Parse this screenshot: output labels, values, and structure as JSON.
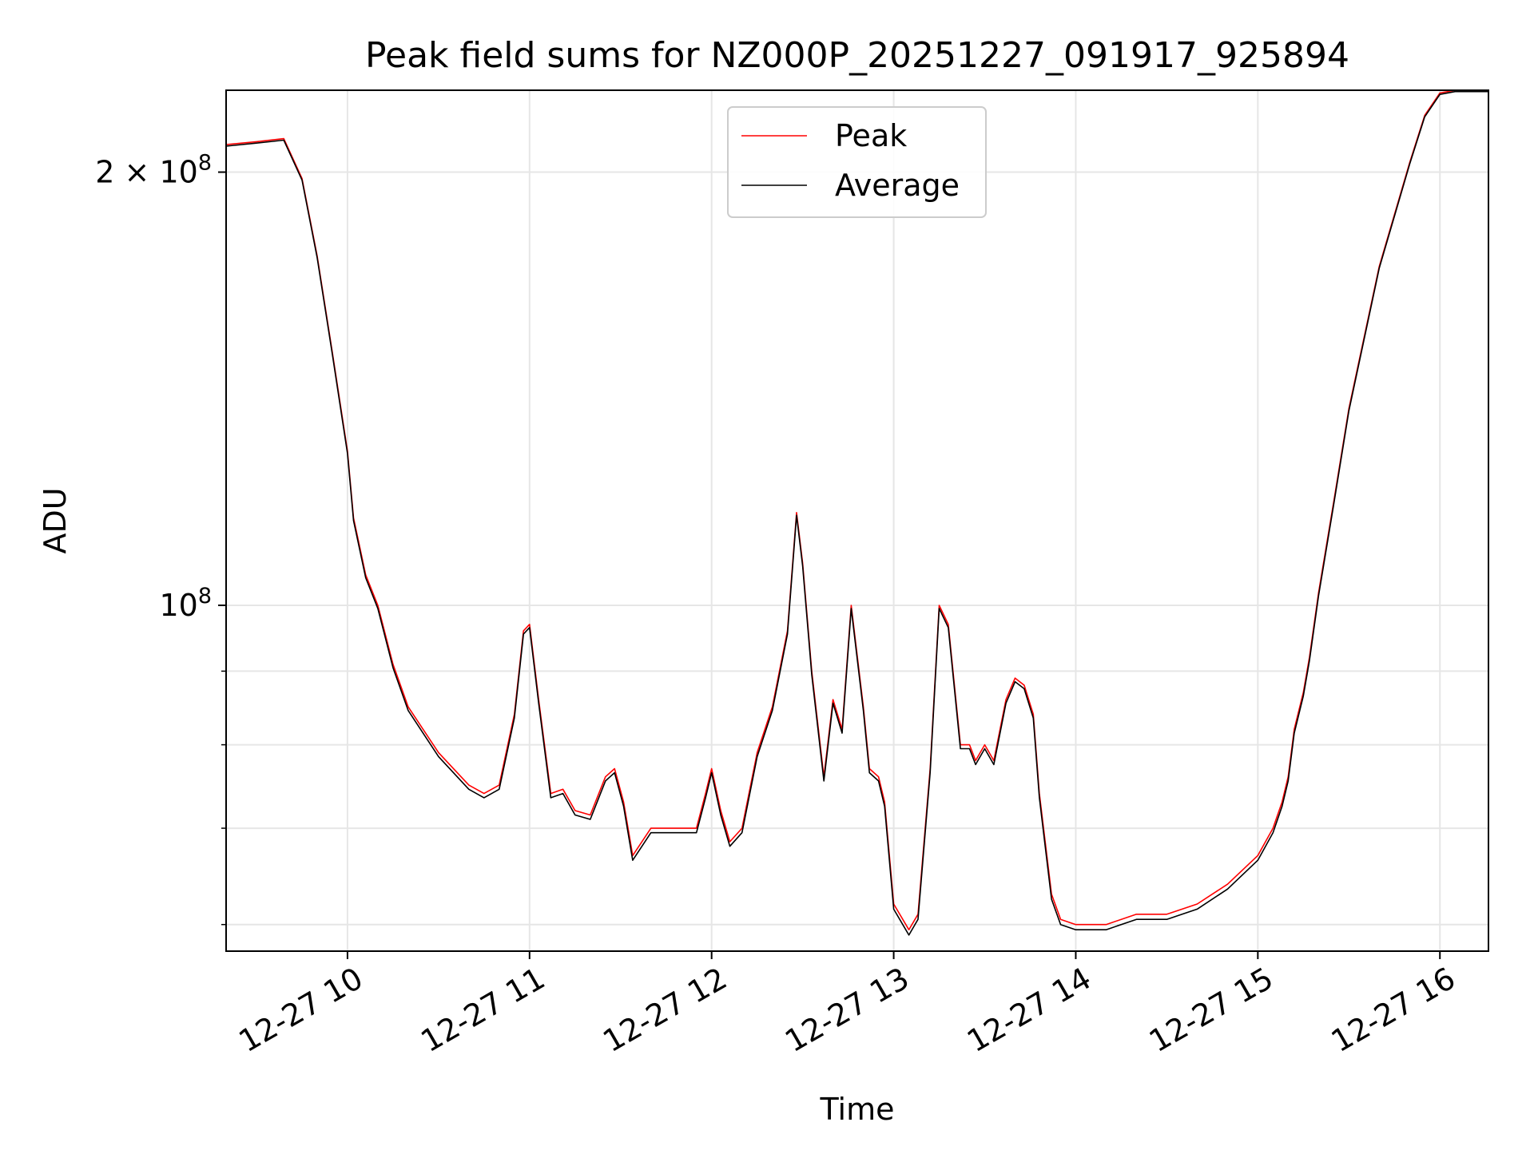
{
  "chart_data": {
    "type": "line",
    "title": "Peak field sums for NZ000P_20251227_091917_925894",
    "xlabel": "Time",
    "ylabel": "ADU",
    "y_scale": "log",
    "grid": true,
    "legend_position": "upper center",
    "x_ticks": [
      "12-27 10",
      "12-27 11",
      "12-27 12",
      "12-27 13",
      "12-27 14",
      "12-27 15",
      "12-27 16"
    ],
    "y_ticks": [
      {
        "value": 200000000,
        "label_base": "2 × 10",
        "label_exp": "8"
      },
      {
        "value": 100000000,
        "label_base": "10",
        "label_exp": "8"
      }
    ],
    "y_minor_ticks": [
      60000000,
      70000000,
      80000000,
      90000000
    ],
    "xlim": [
      "2025-12-27 09:20",
      "2025-12-27 16:16"
    ],
    "ylim": [
      57500000,
      228000000
    ],
    "colors": {
      "Peak": "#ff0000",
      "Average": "#000000"
    },
    "x": [
      "09:20",
      "09:30",
      "09:39",
      "09:45",
      "09:50",
      "09:55",
      "10:00",
      "10:02",
      "10:06",
      "10:10",
      "10:15",
      "10:20",
      "10:30",
      "10:40",
      "10:45",
      "10:50",
      "10:55",
      "10:58",
      "11:00",
      "11:03",
      "11:07",
      "11:11",
      "11:15",
      "11:20",
      "11:25",
      "11:28",
      "11:31",
      "11:34",
      "11:40",
      "11:50",
      "11:55",
      "11:58",
      "12:00",
      "12:03",
      "12:06",
      "12:10",
      "12:15",
      "12:20",
      "12:25",
      "12:28",
      "12:30",
      "12:33",
      "12:37",
      "12:40",
      "12:43",
      "12:46",
      "12:50",
      "12:52",
      "12:55",
      "12:57",
      "13:00",
      "13:05",
      "13:08",
      "13:12",
      "13:15",
      "13:18",
      "13:22",
      "13:25",
      "13:27",
      "13:30",
      "13:33",
      "13:37",
      "13:40",
      "13:43",
      "13:46",
      "13:48",
      "13:52",
      "13:55",
      "14:00",
      "14:10",
      "14:20",
      "14:30",
      "14:40",
      "14:50",
      "15:00",
      "15:05",
      "15:08",
      "15:10",
      "15:12",
      "15:15",
      "15:17",
      "15:20",
      "15:25",
      "15:30",
      "15:40",
      "15:50",
      "15:55",
      "16:00",
      "16:05",
      "16:16"
    ],
    "series": [
      {
        "name": "Peak",
        "values": [
          209000000,
          210000000,
          211000000,
          198000000,
          175000000,
          150000000,
          128000000,
          115000000,
          105000000,
          100000000,
          91000000,
          85000000,
          79000000,
          75000000,
          74000000,
          75000000,
          84000000,
          96000000,
          97000000,
          86000000,
          74000000,
          74500000,
          72000000,
          71500000,
          76000000,
          77000000,
          73000000,
          67000000,
          70000000,
          70000000,
          70000000,
          74000000,
          77000000,
          72000000,
          68500000,
          70000000,
          79000000,
          85000000,
          96000000,
          116000000,
          107000000,
          90000000,
          76000000,
          86000000,
          82000000,
          100000000,
          85000000,
          77000000,
          76000000,
          73000000,
          62000000,
          59500000,
          61000000,
          77000000,
          100000000,
          97000000,
          80000000,
          80000000,
          78000000,
          80000000,
          78000000,
          86000000,
          89000000,
          88000000,
          84000000,
          74000000,
          63000000,
          60500000,
          60000000,
          60000000,
          61000000,
          61000000,
          62000000,
          64000000,
          67000000,
          70000000,
          73000000,
          76000000,
          82000000,
          87000000,
          92000000,
          102000000,
          118000000,
          137000000,
          172000000,
          203000000,
          219000000,
          227000000,
          228000000,
          228000000
        ]
      },
      {
        "name": "Average",
        "values": [
          208500000,
          209500000,
          210500000,
          197500000,
          174500000,
          149500000,
          127500000,
          114500000,
          104500000,
          99500000,
          90500000,
          84500000,
          78500000,
          74500000,
          73500000,
          74500000,
          83500000,
          95500000,
          96500000,
          85500000,
          73500000,
          74000000,
          71500000,
          71000000,
          75500000,
          76500000,
          72500000,
          66500000,
          69500000,
          69500000,
          69500000,
          73500000,
          76500000,
          71500000,
          68000000,
          69500000,
          78500000,
          84500000,
          95500000,
          115500000,
          106500000,
          89500000,
          75500000,
          85500000,
          81500000,
          99500000,
          84500000,
          76500000,
          75500000,
          72500000,
          61500000,
          59000000,
          60500000,
          76500000,
          99500000,
          96500000,
          79500000,
          79500000,
          77500000,
          79500000,
          77500000,
          85500000,
          88500000,
          87500000,
          83500000,
          73500000,
          62500000,
          60000000,
          59500000,
          59500000,
          60500000,
          60500000,
          61500000,
          63500000,
          66500000,
          69500000,
          72500000,
          75500000,
          81500000,
          86500000,
          91500000,
          101500000,
          117500000,
          136500000,
          171500000,
          202500000,
          218500000,
          226500000,
          227500000,
          227500000
        ]
      }
    ]
  }
}
